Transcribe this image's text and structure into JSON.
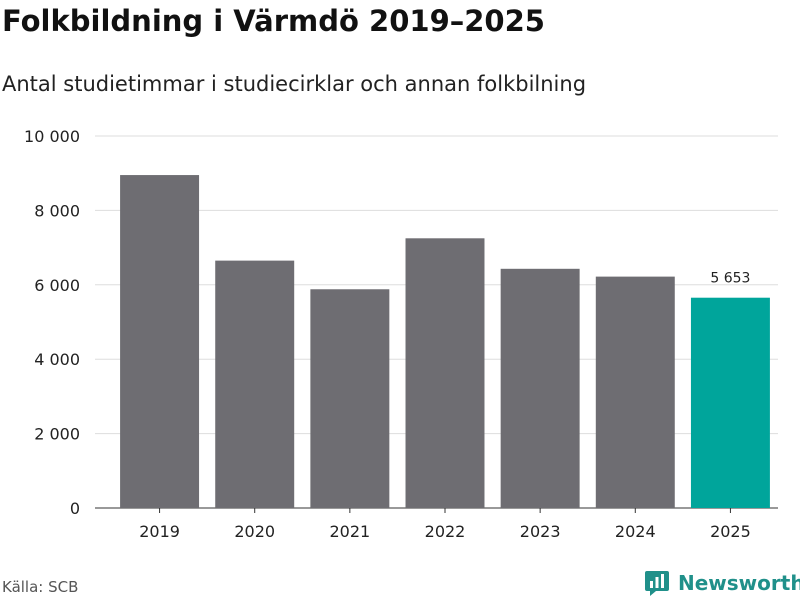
{
  "header": {
    "title": "Folkbildning i Värmdö 2019–2025",
    "subtitle": "Antal studietimmar i studiecirklar och annan folkbilning"
  },
  "footer": {
    "source": "Källa: SCB",
    "brand": "Newsworthy"
  },
  "colors": {
    "bar": "#6e6d72",
    "highlight": "#00a59b",
    "grid": "#dddddd",
    "brand": "#20908a"
  },
  "chart_data": {
    "type": "bar",
    "title": "Folkbildning i Värmdö 2019–2025",
    "subtitle": "Antal studietimmar i studiecirklar och annan folkbilning",
    "xlabel": "",
    "ylabel": "",
    "categories": [
      "2019",
      "2020",
      "2021",
      "2022",
      "2023",
      "2024",
      "2025"
    ],
    "values": [
      8950,
      6650,
      5880,
      7250,
      6430,
      6220,
      5653
    ],
    "ylim": [
      0,
      10000
    ],
    "yticks": [
      0,
      2000,
      4000,
      6000,
      8000,
      10000
    ],
    "ytick_labels": [
      "0",
      "2 000",
      "4 000",
      "6 000",
      "8 000",
      "10 000"
    ],
    "highlight_index": 6,
    "data_labels": [
      {
        "index": 6,
        "text": "5 653"
      }
    ],
    "grid": true
  }
}
